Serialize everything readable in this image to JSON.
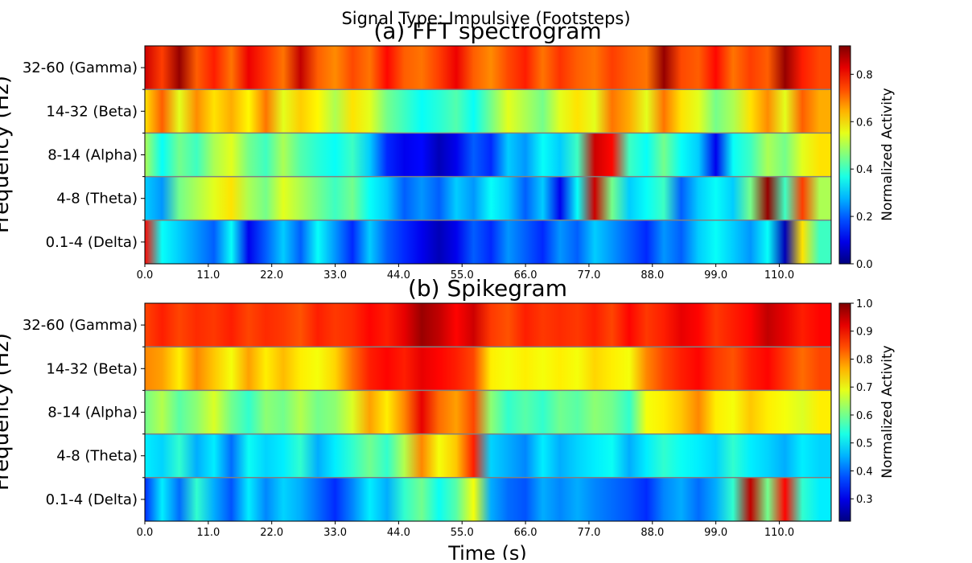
{
  "suptitle": "Signal Type: Impulsive (Footsteps)",
  "colormap": "jet",
  "chart_data": [
    {
      "type": "heatmap",
      "title": "(a) FFT spectrogram",
      "xlabel": "",
      "ylabel": "Frequency (Hz)",
      "x_ticks": [
        "0.0",
        "11.0",
        "22.0",
        "33.0",
        "44.0",
        "55.0",
        "66.0",
        "77.0",
        "88.0",
        "99.0",
        "110.0"
      ],
      "xlim": [
        0,
        119
      ],
      "y_categories": [
        "32-60 (Gamma)",
        "14-32 (Beta)",
        "8-14 (Alpha)",
        "4-8 (Theta)",
        "0.1-4 (Delta)"
      ],
      "colorbar": {
        "label": "Normalized Activity",
        "range": [
          0.0,
          0.92
        ],
        "ticks": [
          "0.0",
          "0.2",
          "0.4",
          "0.6",
          "0.8"
        ]
      },
      "x": [
        0,
        3,
        6,
        9,
        12,
        15,
        18,
        21,
        24,
        27,
        30,
        33,
        36,
        39,
        42,
        45,
        48,
        51,
        54,
        57,
        60,
        63,
        66,
        69,
        72,
        75,
        78,
        81,
        84,
        87,
        90,
        93,
        96,
        99,
        102,
        105,
        108,
        111,
        114,
        117
      ],
      "rows": [
        {
          "band": "32-60 (Gamma)",
          "values": [
            0.85,
            0.75,
            0.9,
            0.72,
            0.78,
            0.7,
            0.82,
            0.76,
            0.7,
            0.86,
            0.72,
            0.68,
            0.74,
            0.7,
            0.8,
            0.72,
            0.7,
            0.75,
            0.82,
            0.72,
            0.68,
            0.74,
            0.78,
            0.7,
            0.76,
            0.72,
            0.7,
            0.75,
            0.72,
            0.7,
            0.9,
            0.74,
            0.72,
            0.8,
            0.7,
            0.75,
            0.72,
            0.9,
            0.78,
            0.74
          ]
        },
        {
          "band": "14-32 (Beta)",
          "values": [
            0.6,
            0.72,
            0.55,
            0.68,
            0.6,
            0.65,
            0.58,
            0.7,
            0.55,
            0.62,
            0.58,
            0.5,
            0.6,
            0.55,
            0.45,
            0.4,
            0.35,
            0.38,
            0.42,
            0.35,
            0.45,
            0.55,
            0.5,
            0.45,
            0.55,
            0.6,
            0.55,
            0.7,
            0.65,
            0.55,
            0.7,
            0.6,
            0.55,
            0.45,
            0.5,
            0.6,
            0.68,
            0.55,
            0.72,
            0.65
          ]
        },
        {
          "band": "8-14 (Alpha)",
          "values": [
            0.5,
            0.35,
            0.45,
            0.4,
            0.5,
            0.55,
            0.45,
            0.4,
            0.5,
            0.42,
            0.38,
            0.35,
            0.4,
            0.3,
            0.15,
            0.1,
            0.12,
            0.05,
            0.1,
            0.2,
            0.15,
            0.3,
            0.25,
            0.35,
            0.3,
            0.4,
            0.85,
            0.8,
            0.4,
            0.35,
            0.45,
            0.35,
            0.3,
            0.1,
            0.35,
            0.4,
            0.5,
            0.45,
            0.55,
            0.6
          ]
        },
        {
          "band": "4-8 (Theta)",
          "values": [
            0.3,
            0.25,
            0.45,
            0.5,
            0.55,
            0.6,
            0.5,
            0.45,
            0.55,
            0.5,
            0.45,
            0.4,
            0.45,
            0.35,
            0.3,
            0.2,
            0.25,
            0.2,
            0.3,
            0.25,
            0.35,
            0.3,
            0.2,
            0.3,
            0.1,
            0.35,
            0.85,
            0.45,
            0.3,
            0.35,
            0.4,
            0.2,
            0.3,
            0.35,
            0.3,
            0.45,
            0.9,
            0.4,
            0.75,
            0.5
          ]
        },
        {
          "band": "0.1-4 (Delta)",
          "values": [
            0.8,
            0.35,
            0.3,
            0.25,
            0.2,
            0.35,
            0.1,
            0.2,
            0.3,
            0.2,
            0.35,
            0.25,
            0.15,
            0.3,
            0.2,
            0.15,
            0.1,
            0.05,
            0.1,
            0.2,
            0.15,
            0.25,
            0.2,
            0.15,
            0.25,
            0.2,
            0.3,
            0.25,
            0.2,
            0.15,
            0.25,
            0.2,
            0.3,
            0.35,
            0.3,
            0.25,
            0.35,
            0.05,
            0.6,
            0.4
          ]
        }
      ]
    },
    {
      "type": "heatmap",
      "title": "(b) Spikegram",
      "xlabel": "Time (s)",
      "ylabel": "Frequency (Hz)",
      "x_ticks": [
        "0.0",
        "11.0",
        "22.0",
        "33.0",
        "44.0",
        "55.0",
        "66.0",
        "77.0",
        "88.0",
        "99.0",
        "110.0"
      ],
      "xlim": [
        0,
        119
      ],
      "y_categories": [
        "32-60 (Gamma)",
        "14-32 (Beta)",
        "8-14 (Alpha)",
        "4-8 (Theta)",
        "0.1-4 (Delta)"
      ],
      "colorbar": {
        "label": "Normalized Activity",
        "range": [
          0.22,
          1.0
        ],
        "ticks": [
          "0.3",
          "0.4",
          "0.5",
          "0.6",
          "0.7",
          "0.8",
          "0.9",
          "1.0"
        ]
      },
      "x": [
        0,
        3,
        6,
        9,
        12,
        15,
        18,
        21,
        24,
        27,
        30,
        33,
        36,
        39,
        42,
        45,
        48,
        51,
        54,
        57,
        60,
        63,
        66,
        69,
        72,
        75,
        78,
        81,
        84,
        87,
        90,
        93,
        96,
        99,
        102,
        105,
        108,
        111,
        114,
        117
      ],
      "rows": [
        {
          "band": "32-60 (Gamma)",
          "values": [
            0.85,
            0.88,
            0.85,
            0.87,
            0.86,
            0.88,
            0.85,
            0.87,
            0.86,
            0.84,
            0.88,
            0.86,
            0.87,
            0.9,
            0.88,
            0.92,
            0.98,
            0.95,
            0.9,
            0.94,
            0.86,
            0.84,
            0.88,
            0.86,
            0.87,
            0.86,
            0.88,
            0.85,
            0.9,
            0.86,
            0.88,
            0.92,
            0.9,
            0.86,
            0.88,
            0.9,
            0.95,
            0.92,
            0.88,
            0.9
          ]
        },
        {
          "band": "14-32 (Beta)",
          "values": [
            0.8,
            0.78,
            0.72,
            0.8,
            0.75,
            0.7,
            0.78,
            0.72,
            0.76,
            0.72,
            0.7,
            0.74,
            0.82,
            0.88,
            0.9,
            0.88,
            0.92,
            0.9,
            0.88,
            0.85,
            0.72,
            0.7,
            0.72,
            0.7,
            0.72,
            0.7,
            0.74,
            0.72,
            0.7,
            0.8,
            0.85,
            0.88,
            0.9,
            0.86,
            0.84,
            0.88,
            0.9,
            0.86,
            0.82,
            0.85
          ]
        },
        {
          "band": "8-14 (Alpha)",
          "values": [
            0.6,
            0.65,
            0.58,
            0.62,
            0.68,
            0.6,
            0.55,
            0.62,
            0.6,
            0.65,
            0.6,
            0.62,
            0.68,
            0.78,
            0.72,
            0.8,
            0.92,
            0.82,
            0.78,
            0.85,
            0.62,
            0.55,
            0.58,
            0.55,
            0.6,
            0.58,
            0.62,
            0.6,
            0.55,
            0.7,
            0.72,
            0.75,
            0.8,
            0.72,
            0.7,
            0.75,
            0.72,
            0.7,
            0.68,
            0.72
          ]
        },
        {
          "band": "4-8 (Theta)",
          "values": [
            0.5,
            0.48,
            0.55,
            0.45,
            0.5,
            0.4,
            0.52,
            0.48,
            0.5,
            0.55,
            0.45,
            0.5,
            0.55,
            0.6,
            0.55,
            0.65,
            0.8,
            0.7,
            0.75,
            0.88,
            0.48,
            0.45,
            0.42,
            0.5,
            0.45,
            0.48,
            0.5,
            0.52,
            0.45,
            0.5,
            0.55,
            0.52,
            0.5,
            0.48,
            0.55,
            0.5,
            0.48,
            0.45,
            0.5,
            0.48
          ]
        },
        {
          "band": "0.1-4 (Delta)",
          "values": [
            0.35,
            0.5,
            0.4,
            0.55,
            0.45,
            0.38,
            0.5,
            0.42,
            0.48,
            0.45,
            0.4,
            0.35,
            0.42,
            0.5,
            0.45,
            0.55,
            0.6,
            0.52,
            0.58,
            0.7,
            0.45,
            0.4,
            0.38,
            0.45,
            0.42,
            0.45,
            0.42,
            0.4,
            0.38,
            0.35,
            0.42,
            0.45,
            0.4,
            0.45,
            0.55,
            0.95,
            0.6,
            0.9,
            0.55,
            0.5
          ]
        }
      ]
    }
  ]
}
